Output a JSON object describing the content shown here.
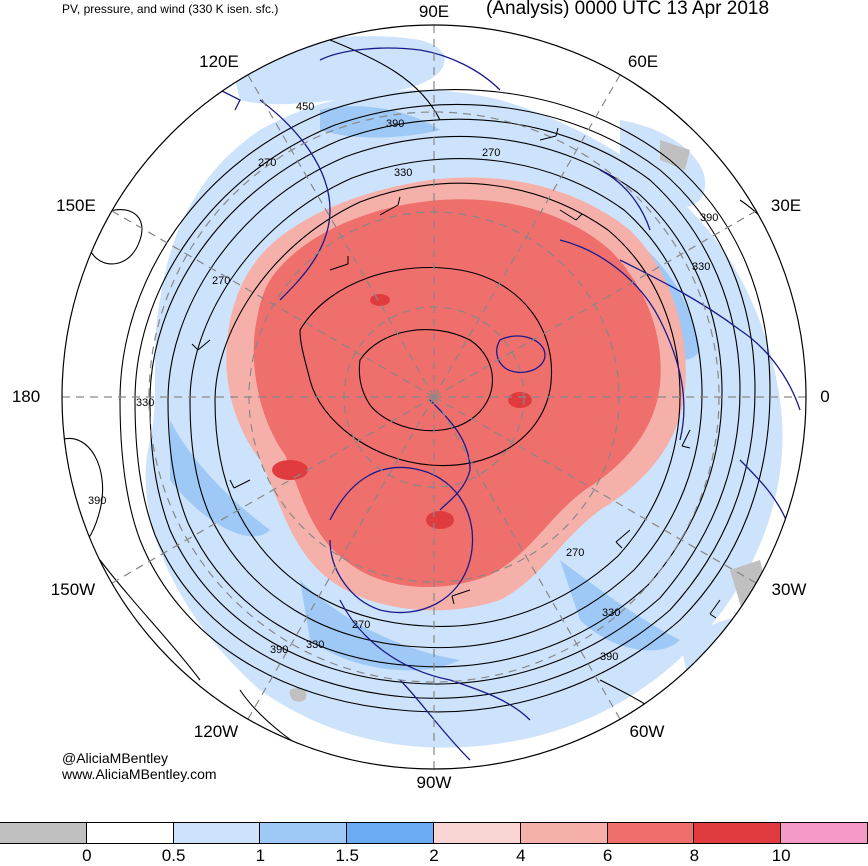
{
  "header": {
    "title_left": "PV, pressure, and wind (330 K isen. sfc.)",
    "title_right": "(Analysis) 0000 UTC 13 Apr 2018"
  },
  "credits": {
    "handle": "@AliciaMBentley",
    "site": "www.AliciaMBentley.com"
  },
  "longitude_labels": [
    {
      "id": "lon-90e",
      "text": "90E"
    },
    {
      "id": "lon-60e",
      "text": "60E"
    },
    {
      "id": "lon-120e",
      "text": "120E"
    },
    {
      "id": "lon-30e",
      "text": "30E"
    },
    {
      "id": "lon-150e",
      "text": "150E"
    },
    {
      "id": "lon-180",
      "text": "180"
    },
    {
      "id": "lon-0",
      "text": "0"
    },
    {
      "id": "lon-150w",
      "text": "150W"
    },
    {
      "id": "lon-30w",
      "text": "30W"
    },
    {
      "id": "lon-120w",
      "text": "120W"
    },
    {
      "id": "lon-60w",
      "text": "60W"
    },
    {
      "id": "lon-90w",
      "text": "90W"
    }
  ],
  "contour_labels": [
    "450",
    "390",
    "330",
    "270",
    "390",
    "330",
    "270",
    "330",
    "390",
    "270",
    "330",
    "390",
    "270",
    "330",
    "390",
    "270"
  ],
  "colorbar": {
    "colors": [
      "#c0c0c0",
      "#ffffff",
      "#cde3fb",
      "#9ec9f7",
      "#6aacf3",
      "#f9d6d3",
      "#f6b0aa",
      "#ef6f6c",
      "#e03c3f",
      "#f59ac8"
    ],
    "labels": [
      "0",
      "0.5",
      "1",
      "1.5",
      "2",
      "4",
      "6",
      "8",
      "10"
    ]
  },
  "colors": {
    "pv_high": "#ef6f6c",
    "pv_light_red": "#f6b0aa",
    "pv_blue": "#9ec9f7",
    "pv_light_blue": "#cde3fb",
    "coastline": "#1a1a8c"
  }
}
